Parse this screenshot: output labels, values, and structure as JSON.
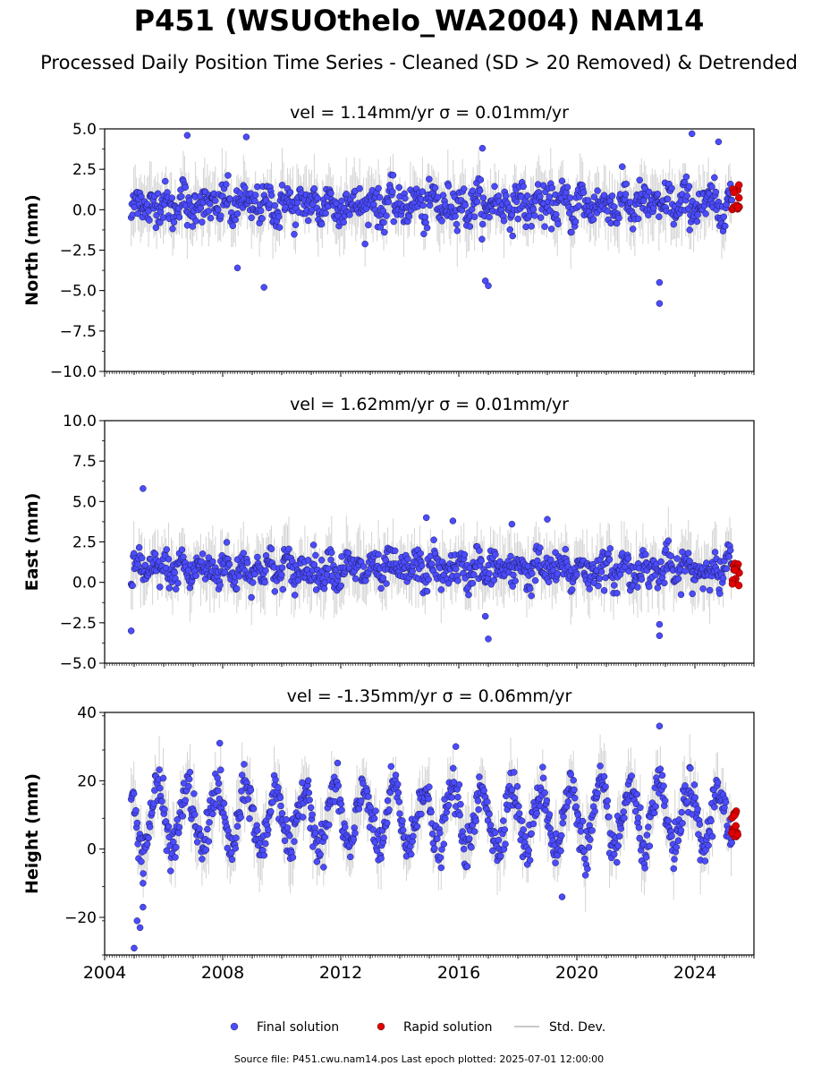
{
  "title": "P451 (WSUOthelo_WA2004) NAM14",
  "subtitle": "Processed Daily Position Time Series - Cleaned (SD > 20 Removed) & Detrended",
  "footer": "Source file: P451.cwu.nam14.pos  Last epoch plotted: 2025-07-01 12:00:00",
  "legend": [
    {
      "label": "Final solution",
      "color": "#4b4bff",
      "kind": "point"
    },
    {
      "label": "Rapid solution",
      "color": "#e00000",
      "kind": "point"
    },
    {
      "label": "Std. Dev.",
      "color": "#c8c8c8",
      "kind": "line"
    }
  ],
  "colors": {
    "final": "#4b4bff",
    "rapid": "#e00000",
    "stddev": "#808080",
    "frame": "#000000"
  },
  "chart_data": [
    {
      "type": "scatter",
      "component": "north",
      "title": "vel = 1.14mm/yr   σ = 0.01mm/yr",
      "ylabel": "North (mm)",
      "xlim": [
        2004,
        2026
      ],
      "ylim": [
        -10,
        5
      ],
      "yticks": [
        5.0,
        2.5,
        0.0,
        -2.5,
        -5.0,
        -7.5,
        -10.0
      ],
      "ytick_labels": [
        "5.0",
        "2.5",
        "0.0",
        "−2.5",
        "−5.0",
        "−7.5",
        "−10.0"
      ],
      "series": [
        {
          "name": "Final solution",
          "x_range": [
            2004.9,
            2025.25
          ],
          "spread": 1.4,
          "noise_sd": 0.45
        },
        {
          "name": "Rapid solution",
          "x_range": [
            2025.25,
            2025.5
          ],
          "y_range": [
            0.0,
            1.6
          ]
        }
      ],
      "outliers": [
        {
          "x": 2006.8,
          "y": 4.6
        },
        {
          "x": 2008.8,
          "y": 4.5
        },
        {
          "x": 2009.4,
          "y": -4.8
        },
        {
          "x": 2016.9,
          "y": -4.4
        },
        {
          "x": 2017.0,
          "y": -4.7
        },
        {
          "x": 2022.8,
          "y": -4.5
        },
        {
          "x": 2022.8,
          "y": -5.8
        },
        {
          "x": 2023.9,
          "y": 4.7
        },
        {
          "x": 2024.8,
          "y": 4.2
        },
        {
          "x": 2008.5,
          "y": -3.6
        },
        {
          "x": 2016.8,
          "y": 3.8
        }
      ]
    },
    {
      "type": "scatter",
      "component": "east",
      "title": "vel = 1.62mm/yr   σ = 0.01mm/yr",
      "ylabel": "East (mm)",
      "xlim": [
        2004,
        2026
      ],
      "ylim": [
        -5,
        10
      ],
      "yticks": [
        10.0,
        7.5,
        5.0,
        2.5,
        0.0,
        -2.5,
        -5.0
      ],
      "ytick_labels": [
        "10.0",
        "7.5",
        "5.0",
        "2.5",
        "0.0",
        "−2.5",
        "−5.0"
      ],
      "series": [
        {
          "name": "Final solution",
          "x_range": [
            2004.9,
            2025.25
          ],
          "spread": 1.1,
          "noise_sd": 0.4
        },
        {
          "name": "Rapid solution",
          "x_range": [
            2025.25,
            2025.5
          ],
          "y_range": [
            -0.2,
            1.4
          ]
        }
      ],
      "outliers": [
        {
          "x": 2005.3,
          "y": 5.8
        },
        {
          "x": 2004.9,
          "y": -3.0
        },
        {
          "x": 2016.9,
          "y": -2.1
        },
        {
          "x": 2017.0,
          "y": -3.5
        },
        {
          "x": 2022.8,
          "y": -2.6
        },
        {
          "x": 2022.8,
          "y": -3.3
        },
        {
          "x": 2014.9,
          "y": 4.0
        },
        {
          "x": 2015.8,
          "y": 3.8
        },
        {
          "x": 2019.0,
          "y": 3.9
        },
        {
          "x": 2017.8,
          "y": 3.6
        }
      ]
    },
    {
      "type": "scatter",
      "component": "height",
      "title": "vel = -1.35mm/yr   σ = 0.06mm/yr",
      "ylabel": "Height (mm)",
      "xlim": [
        2004,
        2026
      ],
      "ylim": [
        -31,
        40
      ],
      "yticks": [
        40,
        20,
        0,
        -20
      ],
      "ytick_labels": [
        "40",
        "20",
        "0",
        "−20"
      ],
      "xticks": [
        2004,
        2008,
        2012,
        2016,
        2020,
        2024
      ],
      "series": [
        {
          "name": "Final solution",
          "x_range": [
            2004.9,
            2025.25
          ],
          "center": 9,
          "amplitude": 9,
          "noise_sd": 3
        },
        {
          "name": "Rapid solution",
          "x_range": [
            2025.25,
            2025.5
          ],
          "y_range": [
            3,
            12
          ]
        }
      ],
      "outliers": [
        {
          "x": 2005.0,
          "y": -29
        },
        {
          "x": 2005.2,
          "y": -23
        },
        {
          "x": 2005.3,
          "y": -17
        },
        {
          "x": 2005.1,
          "y": -21
        },
        {
          "x": 2022.8,
          "y": 36
        },
        {
          "x": 2007.9,
          "y": 31
        },
        {
          "x": 2015.9,
          "y": 30
        },
        {
          "x": 2019.5,
          "y": -14
        },
        {
          "x": 2005.3,
          "y": -10
        }
      ]
    }
  ]
}
